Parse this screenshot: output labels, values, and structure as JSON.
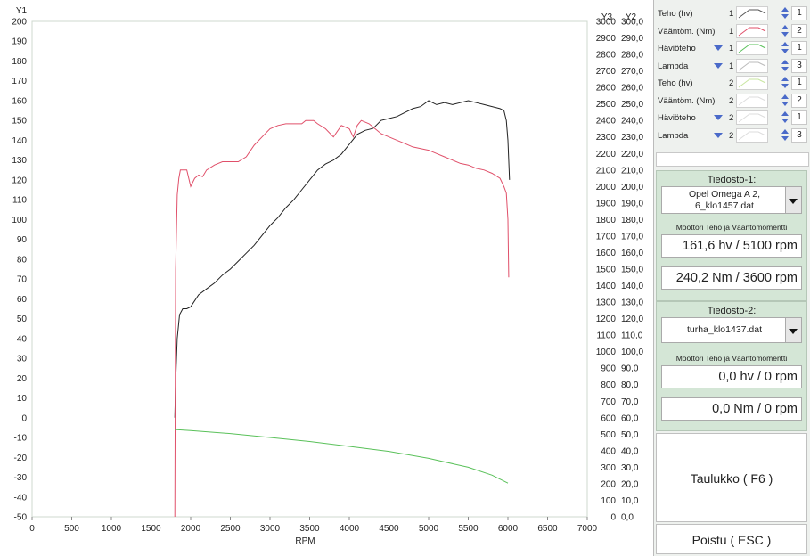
{
  "chart_data": {
    "type": "line",
    "xlabel": "RPM",
    "xlim": [
      0,
      7000
    ],
    "x_ticks": [
      "0",
      "500",
      "1000",
      "1500",
      "2000",
      "2500",
      "3000",
      "3500",
      "4000",
      "4500",
      "5000",
      "5500",
      "6000",
      "6500",
      "7000"
    ],
    "y1_label": "Y1",
    "y1lim": [
      -50,
      200
    ],
    "y1_ticks": [
      "-50",
      "-40",
      "-30",
      "-20",
      "-10",
      "0",
      "10",
      "20",
      "30",
      "40",
      "50",
      "60",
      "70",
      "80",
      "90",
      "100",
      "110",
      "120",
      "130",
      "140",
      "150",
      "160",
      "170",
      "180",
      "190",
      "200"
    ],
    "y3_label": "Y3",
    "y3lim": [
      0,
      3000
    ],
    "y3_ticks": [
      "0",
      "100",
      "200",
      "300",
      "400",
      "500",
      "600",
      "700",
      "800",
      "900",
      "1000",
      "1100",
      "1200",
      "1300",
      "1400",
      "1500",
      "1600",
      "1700",
      "1800",
      "1900",
      "2000",
      "2100",
      "2200",
      "2300",
      "2400",
      "2500",
      "2600",
      "2700",
      "2800",
      "2900",
      "3000"
    ],
    "y2_label": "Y2",
    "y2lim": [
      0,
      300
    ],
    "y2_ticks": [
      "0,0",
      "10,0",
      "20,0",
      "30,0",
      "40,0",
      "50,0",
      "60,0",
      "70,0",
      "80,0",
      "90,0",
      "100,0",
      "110,0",
      "120,0",
      "130,0",
      "140,0",
      "150,0",
      "160,0",
      "170,0",
      "180,0",
      "190,0",
      "200,0",
      "210,0",
      "220,0",
      "230,0",
      "240,0",
      "250,0",
      "260,0",
      "270,0",
      "280,0",
      "290,0",
      "300,0"
    ],
    "grid": false,
    "series": [
      {
        "name": "Teho (hv)",
        "axis": "y1",
        "color": "#222222",
        "x": [
          1800,
          1810,
          1830,
          1860,
          1900,
          1950,
          2000,
          2100,
          2200,
          2300,
          2400,
          2500,
          2600,
          2700,
          2800,
          2900,
          3000,
          3100,
          3200,
          3300,
          3400,
          3500,
          3600,
          3700,
          3800,
          3900,
          4000,
          4100,
          4200,
          4300,
          4400,
          4500,
          4600,
          4700,
          4800,
          4900,
          5000,
          5100,
          5200,
          5300,
          5400,
          5500,
          5600,
          5700,
          5800,
          5900,
          5950,
          5980,
          6000,
          6020
        ],
        "y": [
          0,
          18,
          40,
          52,
          55,
          55,
          56,
          62,
          65,
          68,
          72,
          75,
          79,
          83,
          87,
          92,
          97,
          101,
          106,
          110,
          115,
          120,
          125,
          128,
          130,
          133,
          138,
          143,
          145,
          146,
          150,
          151,
          152,
          154,
          156,
          157,
          160,
          158,
          159,
          158,
          159,
          160,
          159,
          158,
          157,
          156,
          155,
          150,
          140,
          120
        ]
      },
      {
        "name": "Vääntöm. (Nm)",
        "axis": "y2",
        "color": "#e0506a",
        "x": [
          1800,
          1810,
          1830,
          1850,
          1870,
          1900,
          1950,
          2000,
          2050,
          2100,
          2150,
          2200,
          2300,
          2400,
          2500,
          2600,
          2700,
          2800,
          2900,
          3000,
          3100,
          3200,
          3300,
          3400,
          3450,
          3500,
          3550,
          3600,
          3700,
          3800,
          3900,
          4000,
          4050,
          4100,
          4150,
          4200,
          4250,
          4300,
          4400,
          4500,
          4600,
          4700,
          4800,
          4900,
          5000,
          5100,
          5200,
          5300,
          5400,
          5500,
          5600,
          5700,
          5800,
          5900,
          5950,
          5980,
          6000,
          6010
        ],
        "y": [
          0,
          150,
          195,
          205,
          210,
          210,
          210,
          200,
          205,
          207,
          206,
          210,
          213,
          215,
          215,
          215,
          218,
          225,
          230,
          235,
          237,
          238,
          238,
          238,
          240,
          240,
          240,
          238,
          235,
          230,
          237,
          235,
          230,
          237,
          240,
          239,
          238,
          236,
          232,
          230,
          228,
          226,
          224,
          223,
          222,
          220,
          218,
          216,
          214,
          213,
          211,
          210,
          208,
          205,
          200,
          196,
          180,
          145
        ]
      },
      {
        "name": "Häviöteho",
        "axis": "y1",
        "color": "#5ac15a",
        "x": [
          1800,
          2000,
          2500,
          3000,
          3500,
          4000,
          4500,
          5000,
          5500,
          5800,
          6000
        ],
        "y": [
          -6,
          -6.5,
          -8,
          -10,
          -12,
          -14.5,
          -17,
          -20.5,
          -25,
          -29,
          -33
        ]
      }
    ]
  },
  "legend": {
    "rows": [
      {
        "label": "Teho (hv)",
        "dropdown": false,
        "file": "1",
        "color": "#555555",
        "axis": "1"
      },
      {
        "label": "Vääntöm. (Nm)",
        "dropdown": false,
        "file": "1",
        "color": "#e0506a",
        "axis": "2"
      },
      {
        "label": "Häviöteho",
        "dropdown": true,
        "file": "1",
        "color": "#5ac15a",
        "axis": "1"
      },
      {
        "label": "Lambda",
        "dropdown": true,
        "file": "1",
        "color": "#bbbbbb",
        "axis": "3"
      },
      {
        "label": "Teho (hv)",
        "dropdown": false,
        "file": "2",
        "color": "#c8e6a0",
        "axis": "1"
      },
      {
        "label": "Vääntöm. (Nm)",
        "dropdown": false,
        "file": "2",
        "color": "#dddddd",
        "axis": "2"
      },
      {
        "label": "Häviöteho",
        "dropdown": true,
        "file": "2",
        "color": "#dddddd",
        "axis": "1"
      },
      {
        "label": "Lambda",
        "dropdown": true,
        "file": "2",
        "color": "#dddddd",
        "axis": "3"
      }
    ]
  },
  "file1": {
    "title": "Tiedosto-1:",
    "filename": "Opel Omega A 2, 6_klo1457.dat",
    "subtitle": "Moottori Teho ja Vääntömomentti",
    "power": "161,6 hv / 5100 rpm",
    "torque": "240,2 Nm / 3600 rpm"
  },
  "file2": {
    "title": "Tiedosto-2:",
    "filename": "turha_klo1437.dat",
    "subtitle": "Moottori Teho ja Vääntömomentti",
    "power": "0,0 hv / 0 rpm",
    "torque": "0,0 Nm / 0 rpm"
  },
  "buttons": {
    "table": "Taulukko ( F6 )",
    "exit": "Poistu ( ESC )"
  }
}
